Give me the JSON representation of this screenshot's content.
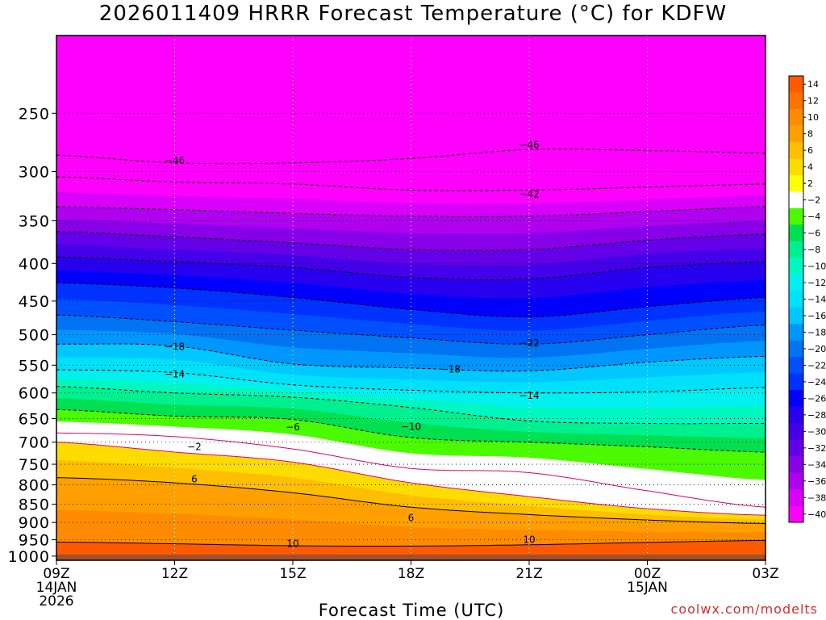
{
  "chart_data": {
    "type": "heatmap",
    "title": "2026011409 HRRR Forecast Temperature (°C) for KDFW",
    "xlabel": "Forecast Time (UTC)",
    "ylabel": "",
    "x_ticks": [
      {
        "hour": 0,
        "lines": [
          "09Z",
          "14JAN",
          "2026"
        ]
      },
      {
        "hour": 3,
        "lines": [
          "12Z"
        ]
      },
      {
        "hour": 6,
        "lines": [
          "15Z"
        ]
      },
      {
        "hour": 9,
        "lines": [
          "18Z"
        ]
      },
      {
        "hour": 12,
        "lines": [
          "21Z"
        ]
      },
      {
        "hour": 15,
        "lines": [
          "00Z",
          "15JAN"
        ]
      },
      {
        "hour": 18,
        "lines": [
          "03Z"
        ]
      }
    ],
    "xlim_hours": [
      0,
      18
    ],
    "y_ticks": [
      250,
      300,
      350,
      400,
      450,
      500,
      550,
      600,
      650,
      700,
      750,
      800,
      850,
      900,
      950,
      1000
    ],
    "ylim_pressure": [
      1013,
      196
    ],
    "ground_pressure": 995,
    "colorbar": {
      "labels": [
        "14",
        "12",
        "10",
        "8",
        "6",
        "4",
        "2",
        "−2",
        "−4",
        "−6",
        "−8",
        "−10",
        "−12",
        "−14",
        "−16",
        "−18",
        "−20",
        "−22",
        "−24",
        "−26",
        "−28",
        "−30",
        "−32",
        "−34",
        "−36",
        "−38",
        "−40"
      ],
      "colors": [
        "#ff5a00",
        "#ff7200",
        "#ff8c00",
        "#ffa000",
        "#ffbe00",
        "#ffdc00",
        "#ffff00",
        "#ffffff",
        "#4cfa00",
        "#00e050",
        "#00f090",
        "#00f8c0",
        "#00f0f0",
        "#00e0f8",
        "#00c8ff",
        "#0096ff",
        "#0073f2",
        "#0050ff",
        "#0032ff",
        "#0000ff",
        "#2800f0",
        "#4400e8",
        "#6400e8",
        "#8800e8",
        "#b000f0",
        "#d800f8",
        "#ff00ff"
      ]
    },
    "level_profiles": {
      "hours": [
        0,
        3,
        6,
        9,
        12,
        15,
        18
      ],
      "temperature_levels": [
        10,
        6,
        2,
        -2,
        -6,
        -10,
        -14,
        -18,
        -22,
        -26,
        -30,
        -34,
        -38,
        -42,
        -46
      ],
      "pressure": [
        [
          957,
          962,
          968,
          969,
          965,
          958,
          952
        ],
        [
          782,
          795,
          820,
          858,
          878,
          893,
          903
        ],
        [
          700,
          722,
          745,
          795,
          830,
          862,
          880
        ],
        [
          680,
          688,
          715,
          760,
          770,
          815,
          858
        ],
        [
          632,
          645,
          652,
          690,
          700,
          710,
          722
        ],
        [
          588,
          600,
          608,
          628,
          655,
          660,
          660
        ],
        [
          558,
          563,
          585,
          595,
          600,
          598,
          590
        ],
        [
          515,
          518,
          548,
          555,
          560,
          545,
          535
        ],
        [
          470,
          480,
          493,
          505,
          515,
          500,
          485
        ],
        [
          425,
          432,
          445,
          462,
          473,
          458,
          445
        ],
        [
          392,
          398,
          405,
          418,
          420,
          405,
          398
        ],
        [
          362,
          368,
          375,
          383,
          383,
          372,
          365
        ],
        [
          335,
          338,
          342,
          345,
          345,
          340,
          335
        ],
        [
          305,
          310,
          312,
          318,
          318,
          315,
          312
        ],
        [
          285,
          292,
          292,
          288,
          280,
          281,
          283
        ]
      ]
    },
    "contour_labels": [
      {
        "text": "−46",
        "hour": 3,
        "pressure": 290
      },
      {
        "text": "−46",
        "hour": 12,
        "pressure": 276
      },
      {
        "text": "−42",
        "hour": 12,
        "pressure": 322
      },
      {
        "text": "−22",
        "hour": 12,
        "pressure": 513
      },
      {
        "text": "−18",
        "hour": 3,
        "pressure": 519
      },
      {
        "text": "−18",
        "hour": 10,
        "pressure": 557
      },
      {
        "text": "−14",
        "hour": 3,
        "pressure": 566
      },
      {
        "text": "−14",
        "hour": 12,
        "pressure": 605
      },
      {
        "text": "−10",
        "hour": 9,
        "pressure": 667
      },
      {
        "text": "−6",
        "hour": 6,
        "pressure": 668
      },
      {
        "text": "−2",
        "hour": 3.5,
        "pressure": 710
      },
      {
        "text": "6",
        "hour": 3.5,
        "pressure": 786
      },
      {
        "text": "6",
        "hour": 9,
        "pressure": 887
      },
      {
        "text": "10",
        "hour": 6,
        "pressure": 962
      },
      {
        "text": "10",
        "hour": 12,
        "pressure": 950
      }
    ]
  },
  "credit": "coolwx.com/modelts"
}
